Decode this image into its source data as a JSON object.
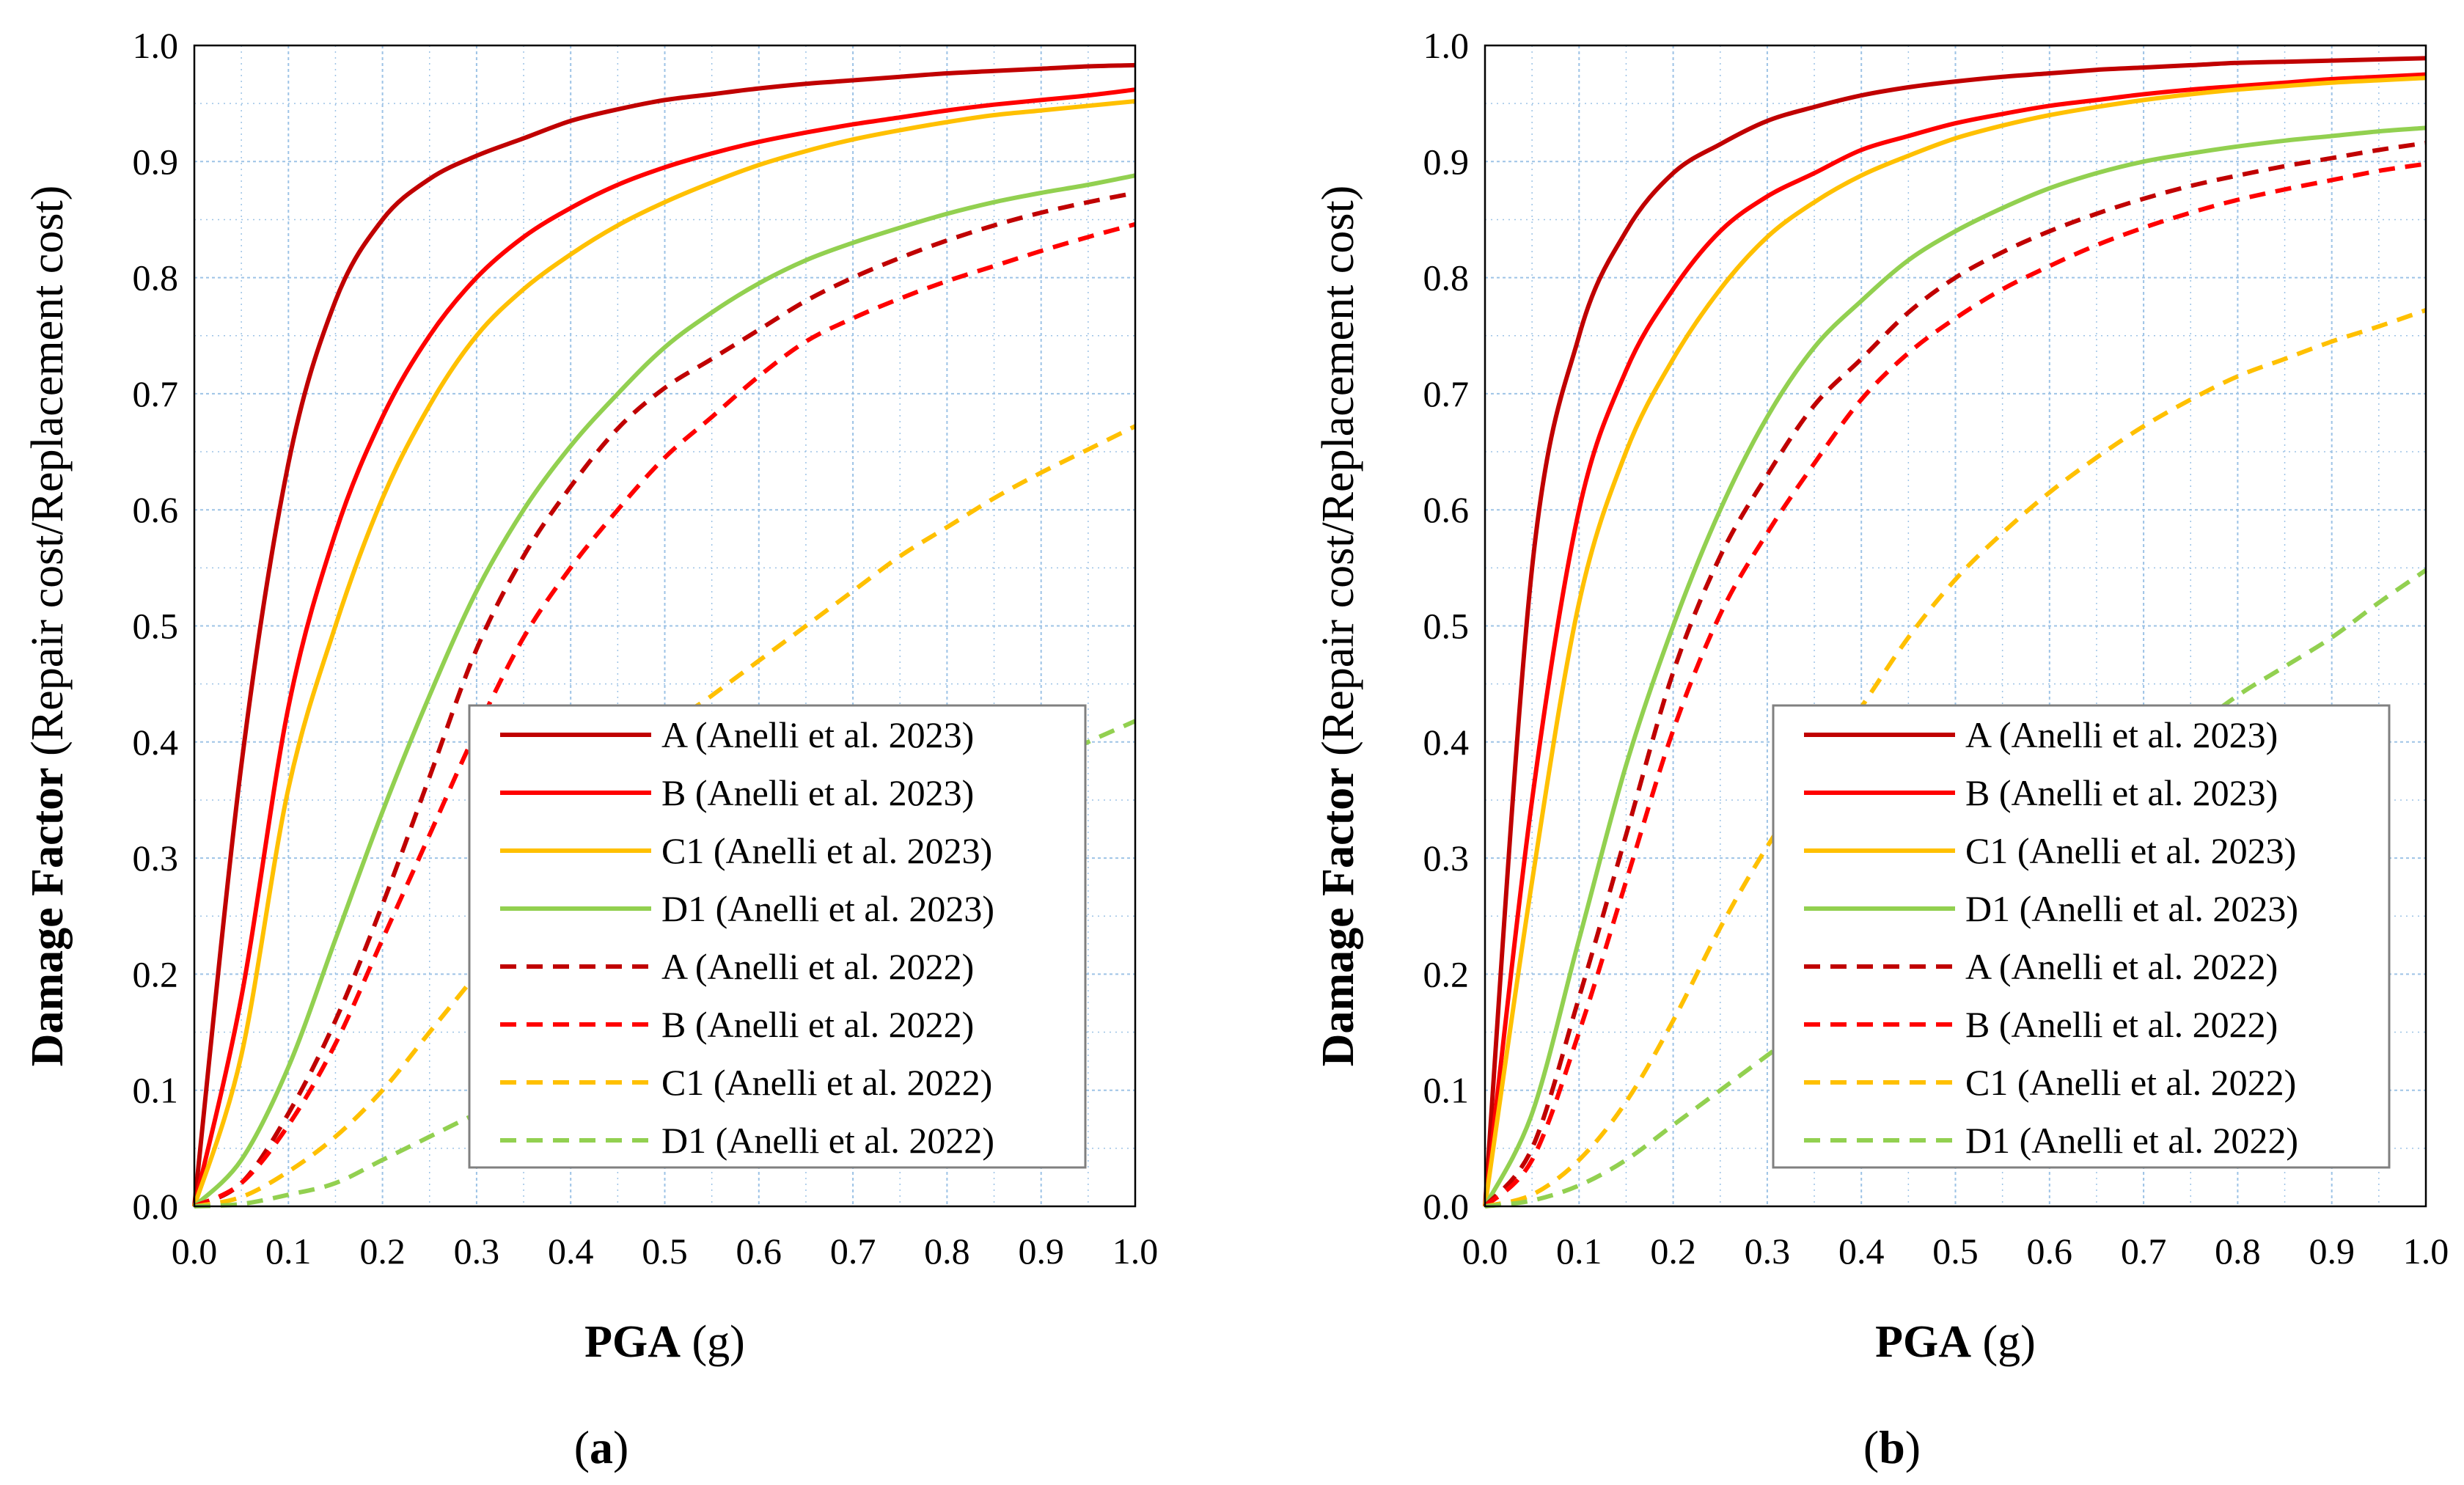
{
  "figure": {
    "x_axis_bold": "PGA",
    "x_axis_rest": " (g)",
    "y_axis_bold": "Damage Factor",
    "y_axis_rest": " (Repair cost/Replacement cost)",
    "x_ticks": [
      "0.0",
      "0.1",
      "0.2",
      "0.3",
      "0.4",
      "0.5",
      "0.6",
      "0.7",
      "0.8",
      "0.9",
      "1.0"
    ],
    "y_ticks": [
      "0.0",
      "0.1",
      "0.2",
      "0.3",
      "0.4",
      "0.5",
      "0.6",
      "0.7",
      "0.8",
      "0.9",
      "1.0"
    ],
    "colors": {
      "A": "#c00000",
      "B": "#ff0000",
      "C1": "#ffc000",
      "D1": "#92d050",
      "grid": "#9dc3e6",
      "axis": "#000000",
      "legend_border": "#808080"
    }
  },
  "chart_data": [
    {
      "type": "line",
      "caption": "(a)",
      "caption_pre": "(",
      "caption_letter": "a",
      "caption_post": ")",
      "xlabel": "PGA (g)",
      "ylabel": "Damage Factor (Repair cost/Replacement cost)",
      "xlim": [
        0,
        1
      ],
      "ylim": [
        0,
        1
      ],
      "grid": true,
      "legend_position": "bottom-right",
      "x": [
        0.0,
        0.05,
        0.1,
        0.15,
        0.2,
        0.25,
        0.3,
        0.35,
        0.4,
        0.45,
        0.5,
        0.55,
        0.6,
        0.65,
        0.7,
        0.75,
        0.8,
        0.85,
        0.9,
        0.95,
        1.0
      ],
      "series": [
        {
          "name": "A  (Anelli et al. 2023)",
          "class": "A",
          "dash": false,
          "values": [
            0.0,
            0.38,
            0.64,
            0.78,
            0.85,
            0.885,
            0.905,
            0.92,
            0.935,
            0.945,
            0.953,
            0.958,
            0.963,
            0.967,
            0.97,
            0.973,
            0.976,
            0.978,
            0.98,
            0.982,
            0.983
          ]
        },
        {
          "name": "B  (Anelli et al. 2023)",
          "class": "B",
          "dash": false,
          "values": [
            0.0,
            0.18,
            0.43,
            0.58,
            0.68,
            0.75,
            0.8,
            0.835,
            0.86,
            0.88,
            0.895,
            0.907,
            0.917,
            0.925,
            0.932,
            0.938,
            0.944,
            0.949,
            0.953,
            0.957,
            0.962
          ]
        },
        {
          "name": "C1 (Anelli et al. 2023)",
          "class": "C1",
          "dash": false,
          "values": [
            0.0,
            0.13,
            0.36,
            0.5,
            0.61,
            0.69,
            0.75,
            0.79,
            0.82,
            0.845,
            0.865,
            0.882,
            0.897,
            0.909,
            0.919,
            0.927,
            0.934,
            0.94,
            0.944,
            0.948,
            0.952
          ]
        },
        {
          "name": "D1 (Anelli et al. 2023)",
          "class": "D1",
          "dash": false,
          "values": [
            0.0,
            0.04,
            0.12,
            0.23,
            0.34,
            0.44,
            0.53,
            0.6,
            0.655,
            0.7,
            0.74,
            0.77,
            0.795,
            0.815,
            0.83,
            0.843,
            0.855,
            0.865,
            0.873,
            0.88,
            0.888
          ]
        },
        {
          "name": "A  (Anelli et al. 2022)",
          "class": "A",
          "dash": true,
          "values": [
            0.0,
            0.02,
            0.08,
            0.16,
            0.26,
            0.37,
            0.48,
            0.56,
            0.62,
            0.67,
            0.705,
            0.73,
            0.755,
            0.78,
            0.8,
            0.817,
            0.832,
            0.845,
            0.856,
            0.865,
            0.873
          ]
        },
        {
          "name": "B  (Anelli et al. 2022)",
          "class": "B",
          "dash": true,
          "values": [
            0.0,
            0.02,
            0.07,
            0.14,
            0.23,
            0.32,
            0.41,
            0.49,
            0.55,
            0.6,
            0.645,
            0.68,
            0.715,
            0.745,
            0.765,
            0.782,
            0.797,
            0.81,
            0.823,
            0.835,
            0.846
          ]
        },
        {
          "name": "C1 (Anelli et al. 2022)",
          "class": "C1",
          "dash": true,
          "values": [
            0.0,
            0.008,
            0.03,
            0.06,
            0.1,
            0.15,
            0.2,
            0.25,
            0.3,
            0.36,
            0.41,
            0.44,
            0.47,
            0.5,
            0.53,
            0.56,
            0.585,
            0.61,
            0.632,
            0.652,
            0.672
          ]
        },
        {
          "name": "D1 (Anelli et al. 2022)",
          "class": "D1",
          "dash": true,
          "values": [
            0.0,
            0.002,
            0.01,
            0.02,
            0.04,
            0.06,
            0.08,
            0.1,
            0.125,
            0.155,
            0.18,
            0.205,
            0.23,
            0.255,
            0.28,
            0.305,
            0.33,
            0.355,
            0.38,
            0.4,
            0.418
          ]
        }
      ]
    },
    {
      "type": "line",
      "caption": "(b)",
      "caption_pre": "(",
      "caption_letter": "b",
      "caption_post": ")",
      "xlabel": "PGA (g)",
      "ylabel": "Damage Factor (Repair cost/Replacement cost)",
      "xlim": [
        0,
        1
      ],
      "ylim": [
        0,
        1
      ],
      "grid": true,
      "legend_position": "bottom-right",
      "x": [
        0.0,
        0.05,
        0.1,
        0.15,
        0.2,
        0.25,
        0.3,
        0.35,
        0.4,
        0.45,
        0.5,
        0.55,
        0.6,
        0.65,
        0.7,
        0.75,
        0.8,
        0.85,
        0.9,
        0.95,
        1.0
      ],
      "series": [
        {
          "name": "A  (Anelli et al. 2023)",
          "class": "A",
          "dash": false,
          "values": [
            0.0,
            0.55,
            0.75,
            0.84,
            0.89,
            0.915,
            0.935,
            0.947,
            0.957,
            0.964,
            0.969,
            0.973,
            0.976,
            0.979,
            0.981,
            0.983,
            0.985,
            0.986,
            0.987,
            0.988,
            0.989
          ]
        },
        {
          "name": "B  (Anelli et al. 2023)",
          "class": "B",
          "dash": false,
          "values": [
            0.0,
            0.35,
            0.6,
            0.72,
            0.79,
            0.84,
            0.87,
            0.89,
            0.91,
            0.922,
            0.933,
            0.941,
            0.948,
            0.953,
            0.958,
            0.962,
            0.965,
            0.968,
            0.971,
            0.973,
            0.975
          ]
        },
        {
          "name": "C1 (Anelli et al. 2023)",
          "class": "C1",
          "dash": false,
          "values": [
            0.0,
            0.28,
            0.52,
            0.65,
            0.73,
            0.79,
            0.835,
            0.865,
            0.888,
            0.905,
            0.92,
            0.931,
            0.94,
            0.947,
            0.953,
            0.958,
            0.962,
            0.965,
            0.968,
            0.97,
            0.972
          ]
        },
        {
          "name": "D1 (Anelli et al. 2023)",
          "class": "D1",
          "dash": false,
          "values": [
            0.0,
            0.08,
            0.23,
            0.38,
            0.5,
            0.6,
            0.68,
            0.74,
            0.78,
            0.815,
            0.84,
            0.86,
            0.877,
            0.89,
            0.9,
            0.907,
            0.913,
            0.918,
            0.922,
            0.926,
            0.929
          ]
        },
        {
          "name": "A  (Anelli et al. 2022)",
          "class": "A",
          "dash": true,
          "values": [
            0.0,
            0.05,
            0.18,
            0.32,
            0.46,
            0.56,
            0.63,
            0.69,
            0.73,
            0.77,
            0.8,
            0.822,
            0.84,
            0.855,
            0.868,
            0.879,
            0.888,
            0.896,
            0.903,
            0.91,
            0.916
          ]
        },
        {
          "name": "B  (Anelli et al. 2022)",
          "class": "B",
          "dash": true,
          "values": [
            0.0,
            0.04,
            0.15,
            0.28,
            0.41,
            0.51,
            0.58,
            0.64,
            0.695,
            0.735,
            0.765,
            0.79,
            0.81,
            0.828,
            0.843,
            0.856,
            0.867,
            0.876,
            0.884,
            0.892,
            0.898
          ]
        },
        {
          "name": "C1 (Anelli et al. 2022)",
          "class": "C1",
          "dash": true,
          "values": [
            0.0,
            0.01,
            0.04,
            0.09,
            0.16,
            0.24,
            0.31,
            0.37,
            0.43,
            0.49,
            0.54,
            0.58,
            0.615,
            0.645,
            0.672,
            0.695,
            0.715,
            0.73,
            0.745,
            0.758,
            0.772
          ]
        },
        {
          "name": "D1 (Anelli et al. 2022)",
          "class": "D1",
          "dash": true,
          "values": [
            0.0,
            0.005,
            0.018,
            0.04,
            0.07,
            0.1,
            0.13,
            0.16,
            0.19,
            0.225,
            0.26,
            0.29,
            0.32,
            0.35,
            0.38,
            0.41,
            0.44,
            0.465,
            0.49,
            0.52,
            0.548
          ]
        }
      ]
    }
  ]
}
